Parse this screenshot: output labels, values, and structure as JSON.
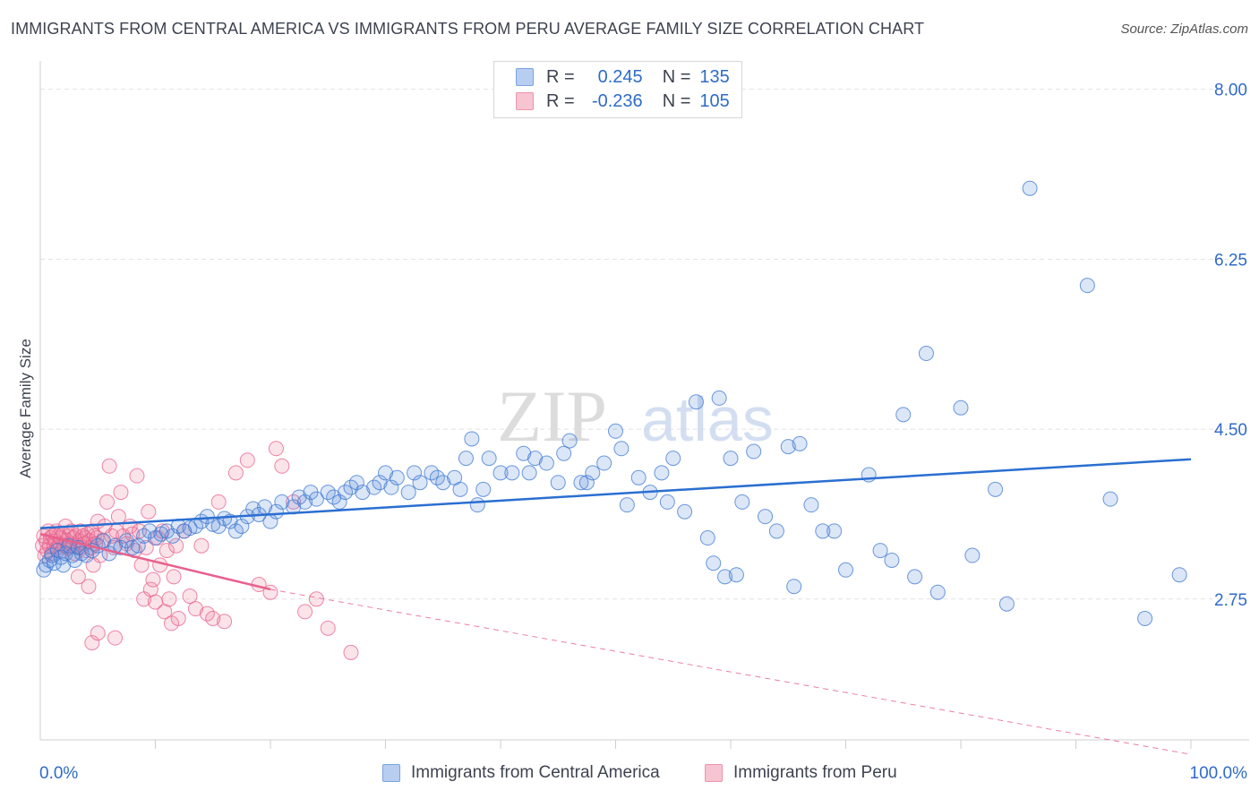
{
  "title": "IMMIGRANTS FROM CENTRAL AMERICA VS IMMIGRANTS FROM PERU AVERAGE FAMILY SIZE CORRELATION CHART",
  "source": "Source: ZipAtlas.com",
  "watermark": {
    "zip": "ZIP",
    "atlas": "atlas"
  },
  "legend": {
    "r_label": "R =",
    "n_label": "N =",
    "rows": [
      {
        "r": "0.245",
        "n": "135"
      },
      {
        "r": "-0.236",
        "n": "105"
      }
    ]
  },
  "bottom_legend": [
    "Immigrants from Central America",
    "Immigrants from Peru"
  ],
  "colors": {
    "blue": "#5b8fdc",
    "blue_line": "#2a6fd1",
    "pink": "#ee7fa0",
    "pink_line": "#e8608c",
    "tick_label": "#2f6bc9"
  },
  "chart_data": {
    "type": "scatter",
    "title": "IMMIGRANTS FROM CENTRAL AMERICA VS IMMIGRANTS FROM PERU AVERAGE FAMILY SIZE CORRELATION CHART",
    "xlabel": "",
    "ylabel": "Average Family Size",
    "xlim": [
      0,
      100
    ],
    "ylim": [
      1.3,
      8.2
    ],
    "x_tick_labels": [
      "0.0%",
      "100.0%"
    ],
    "y_ticks": [
      2.75,
      4.5,
      6.25,
      8.0
    ],
    "y_tick_labels": [
      "2.75",
      "4.50",
      "6.25",
      "8.00"
    ],
    "grid": true,
    "legend_position": "top-center",
    "series": [
      {
        "name": "Immigrants from Central America",
        "r": 0.245,
        "n": 135,
        "trend": {
          "x": [
            0,
            100
          ],
          "y": [
            3.48,
            4.19
          ]
        },
        "points": [
          [
            0.3,
            3.05
          ],
          [
            0.5,
            3.1
          ],
          [
            0.8,
            3.15
          ],
          [
            1,
            3.2
          ],
          [
            1.2,
            3.12
          ],
          [
            1.5,
            3.25
          ],
          [
            1.8,
            3.18
          ],
          [
            2,
            3.1
          ],
          [
            2.2,
            3.22
          ],
          [
            2.5,
            3.3
          ],
          [
            2.8,
            3.2
          ],
          [
            3,
            3.15
          ],
          [
            3.3,
            3.28
          ],
          [
            3.6,
            3.22
          ],
          [
            4,
            3.2
          ],
          [
            4.5,
            3.25
          ],
          [
            5,
            3.3
          ],
          [
            5.5,
            3.35
          ],
          [
            6,
            3.22
          ],
          [
            6.5,
            3.3
          ],
          [
            7,
            3.28
          ],
          [
            7.5,
            3.35
          ],
          [
            8,
            3.28
          ],
          [
            8.5,
            3.3
          ],
          [
            9,
            3.4
          ],
          [
            9.5,
            3.45
          ],
          [
            10,
            3.38
          ],
          [
            10.5,
            3.42
          ],
          [
            11,
            3.45
          ],
          [
            11.5,
            3.4
          ],
          [
            12,
            3.5
          ],
          [
            12.5,
            3.45
          ],
          [
            13,
            3.48
          ],
          [
            13.5,
            3.5
          ],
          [
            14,
            3.55
          ],
          [
            14.5,
            3.6
          ],
          [
            15,
            3.52
          ],
          [
            15.5,
            3.5
          ],
          [
            16,
            3.58
          ],
          [
            16.5,
            3.55
          ],
          [
            17,
            3.45
          ],
          [
            17.5,
            3.5
          ],
          [
            18,
            3.6
          ],
          [
            18.5,
            3.68
          ],
          [
            19,
            3.62
          ],
          [
            19.5,
            3.7
          ],
          [
            20,
            3.55
          ],
          [
            20.5,
            3.65
          ],
          [
            21,
            3.75
          ],
          [
            22,
            3.7
          ],
          [
            22.5,
            3.8
          ],
          [
            23,
            3.75
          ],
          [
            23.5,
            3.85
          ],
          [
            24,
            3.78
          ],
          [
            25,
            3.85
          ],
          [
            25.5,
            3.8
          ],
          [
            26,
            3.75
          ],
          [
            26.5,
            3.85
          ],
          [
            27,
            3.9
          ],
          [
            27.5,
            3.95
          ],
          [
            28,
            3.85
          ],
          [
            29,
            3.9
          ],
          [
            29.5,
            3.95
          ],
          [
            30,
            4.05
          ],
          [
            30.5,
            3.9
          ],
          [
            31,
            4.0
          ],
          [
            32,
            3.85
          ],
          [
            32.5,
            4.05
          ],
          [
            33,
            3.95
          ],
          [
            34,
            4.05
          ],
          [
            34.5,
            4.0
          ],
          [
            35,
            3.95
          ],
          [
            36,
            4.0
          ],
          [
            36.5,
            3.88
          ],
          [
            37,
            4.2
          ],
          [
            37.5,
            4.4
          ],
          [
            38,
            3.72
          ],
          [
            38.5,
            3.88
          ],
          [
            39,
            4.2
          ],
          [
            40,
            4.05
          ],
          [
            41,
            4.05
          ],
          [
            42,
            4.25
          ],
          [
            42.5,
            4.05
          ],
          [
            43,
            4.2
          ],
          [
            44,
            4.15
          ],
          [
            45,
            3.95
          ],
          [
            45.5,
            4.25
          ],
          [
            46,
            4.38
          ],
          [
            47,
            3.95
          ],
          [
            47.5,
            3.95
          ],
          [
            48,
            4.05
          ],
          [
            49,
            4.15
          ],
          [
            50,
            4.48
          ],
          [
            50.5,
            4.3
          ],
          [
            51,
            3.72
          ],
          [
            52,
            4.0
          ],
          [
            53,
            3.85
          ],
          [
            54,
            4.05
          ],
          [
            54.5,
            3.75
          ],
          [
            55,
            4.2
          ],
          [
            56,
            3.65
          ],
          [
            57,
            4.78
          ],
          [
            58,
            3.38
          ],
          [
            58.5,
            3.12
          ],
          [
            59,
            4.82
          ],
          [
            59.5,
            2.98
          ],
          [
            60,
            4.2
          ],
          [
            60.5,
            3.0
          ],
          [
            61,
            3.75
          ],
          [
            62,
            4.27
          ],
          [
            63,
            3.6
          ],
          [
            64,
            3.45
          ],
          [
            65,
            4.32
          ],
          [
            65.5,
            2.88
          ],
          [
            66,
            4.35
          ],
          [
            67,
            3.72
          ],
          [
            68,
            3.45
          ],
          [
            69,
            3.45
          ],
          [
            70,
            3.05
          ],
          [
            72,
            4.03
          ],
          [
            73,
            3.25
          ],
          [
            74,
            3.15
          ],
          [
            75,
            4.65
          ],
          [
            76,
            2.98
          ],
          [
            77,
            5.28
          ],
          [
            78,
            2.82
          ],
          [
            80,
            4.72
          ],
          [
            81,
            3.2
          ],
          [
            83,
            3.88
          ],
          [
            84,
            2.7
          ],
          [
            86,
            6.98
          ],
          [
            91,
            5.98
          ],
          [
            93,
            3.78
          ],
          [
            96,
            2.55
          ],
          [
            99,
            3.0
          ]
        ]
      },
      {
        "name": "Immigrants from Peru",
        "r": -0.236,
        "n": 105,
        "trend": {
          "x": [
            0,
            20
          ],
          "y": [
            3.42,
            2.85
          ]
        },
        "trend_extension": {
          "x": [
            20,
            100
          ],
          "y": [
            2.85,
            1.15
          ]
        },
        "points": [
          [
            0.2,
            3.3
          ],
          [
            0.3,
            3.4
          ],
          [
            0.4,
            3.2
          ],
          [
            0.5,
            3.35
          ],
          [
            0.6,
            3.25
          ],
          [
            0.7,
            3.45
          ],
          [
            0.8,
            3.3
          ],
          [
            0.9,
            3.38
          ],
          [
            1,
            3.22
          ],
          [
            1.1,
            3.4
          ],
          [
            1.2,
            3.3
          ],
          [
            1.3,
            3.35
          ],
          [
            1.4,
            3.45
          ],
          [
            1.5,
            3.28
          ],
          [
            1.6,
            3.4
          ],
          [
            1.7,
            3.32
          ],
          [
            1.8,
            3.38
          ],
          [
            1.9,
            3.25
          ],
          [
            2,
            3.42
          ],
          [
            2.1,
            3.3
          ],
          [
            2.2,
            3.5
          ],
          [
            2.3,
            3.35
          ],
          [
            2.4,
            3.28
          ],
          [
            2.5,
            3.4
          ],
          [
            2.6,
            3.32
          ],
          [
            2.7,
            3.45
          ],
          [
            2.8,
            3.3
          ],
          [
            2.9,
            3.38
          ],
          [
            3,
            3.22
          ],
          [
            3.1,
            3.4
          ],
          [
            3.2,
            3.3
          ],
          [
            3.3,
            2.98
          ],
          [
            3.4,
            3.35
          ],
          [
            3.5,
            3.45
          ],
          [
            3.6,
            3.28
          ],
          [
            3.7,
            3.4
          ],
          [
            3.8,
            3.32
          ],
          [
            3.9,
            3.38
          ],
          [
            4,
            3.25
          ],
          [
            4.1,
            3.42
          ],
          [
            4.2,
            2.88
          ],
          [
            4.3,
            3.35
          ],
          [
            4.4,
            3.28
          ],
          [
            4.5,
            3.45
          ],
          [
            4.6,
            3.1
          ],
          [
            4.7,
            3.4
          ],
          [
            4.8,
            3.32
          ],
          [
            4.9,
            3.38
          ],
          [
            5,
            3.55
          ],
          [
            5.2,
            3.2
          ],
          [
            5.4,
            3.35
          ],
          [
            5.6,
            3.5
          ],
          [
            5.8,
            3.75
          ],
          [
            6,
            4.12
          ],
          [
            6.2,
            3.4
          ],
          [
            6.4,
            3.28
          ],
          [
            6.6,
            3.45
          ],
          [
            6.8,
            3.6
          ],
          [
            7,
            3.85
          ],
          [
            7.2,
            3.4
          ],
          [
            7.5,
            3.32
          ],
          [
            7.8,
            3.5
          ],
          [
            8,
            3.42
          ],
          [
            8.2,
            3.25
          ],
          [
            8.4,
            4.02
          ],
          [
            8.6,
            3.45
          ],
          [
            8.8,
            3.1
          ],
          [
            9,
            2.75
          ],
          [
            9.2,
            3.28
          ],
          [
            9.4,
            3.65
          ],
          [
            9.6,
            2.85
          ],
          [
            9.8,
            2.95
          ],
          [
            10,
            2.72
          ],
          [
            10.2,
            3.38
          ],
          [
            10.4,
            3.1
          ],
          [
            10.6,
            3.45
          ],
          [
            10.8,
            2.62
          ],
          [
            11,
            3.25
          ],
          [
            11.2,
            2.75
          ],
          [
            11.4,
            2.5
          ],
          [
            11.6,
            2.98
          ],
          [
            11.8,
            3.3
          ],
          [
            12,
            2.55
          ],
          [
            12.5,
            3.45
          ],
          [
            13,
            2.78
          ],
          [
            13.5,
            2.65
          ],
          [
            14,
            3.3
          ],
          [
            14.5,
            2.6
          ],
          [
            15,
            2.55
          ],
          [
            15.5,
            3.75
          ],
          [
            16,
            2.52
          ],
          [
            17,
            4.05
          ],
          [
            18,
            4.18
          ],
          [
            19,
            2.9
          ],
          [
            20,
            2.82
          ],
          [
            20.5,
            4.3
          ],
          [
            21,
            4.12
          ],
          [
            22,
            3.75
          ],
          [
            23,
            2.62
          ],
          [
            24,
            2.75
          ],
          [
            25,
            2.45
          ],
          [
            27,
            2.2
          ],
          [
            4.5,
            2.3
          ],
          [
            5,
            2.4
          ],
          [
            6.5,
            2.35
          ]
        ]
      }
    ]
  }
}
